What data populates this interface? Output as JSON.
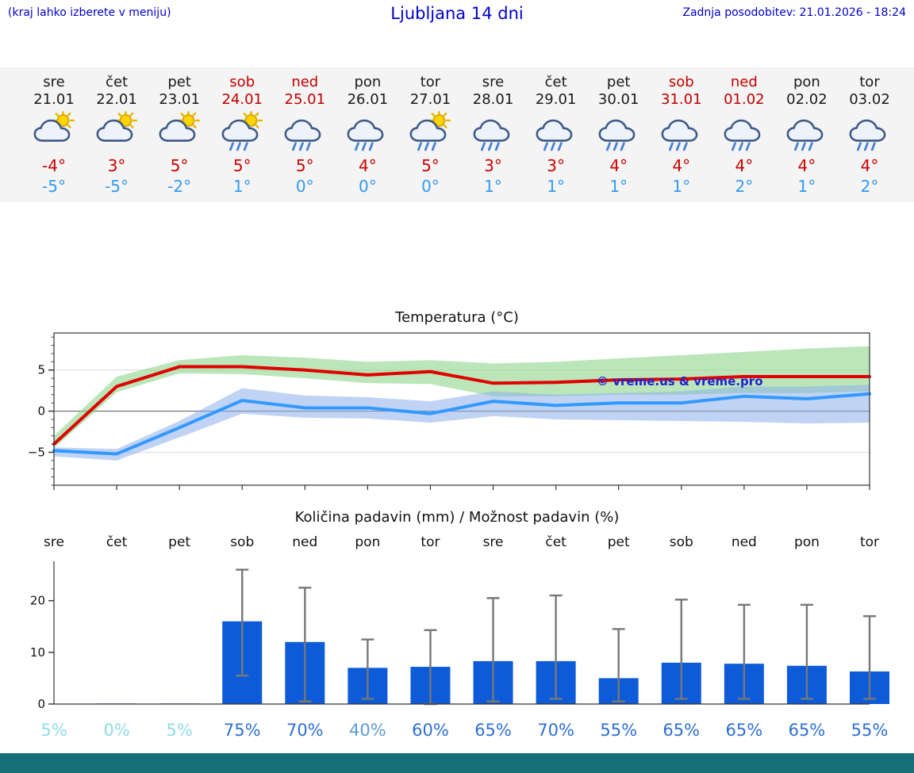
{
  "header": {
    "menu_note": "(kraj lahko izberete v meniju)",
    "title": "Ljubljana 14 dni",
    "last_update": "Zadnja posodobitev: 21.01.2026 - 18:24"
  },
  "colors": {
    "header_blue": "#0000cc",
    "weekend_red": "#c00000",
    "tmax_red": "#cc0000",
    "tmin_blue": "#3399ee",
    "bar_blue": "#0d5bd8",
    "whisker_gray": "#777777",
    "prob_high": "#2d6fd2",
    "prob_mid": "#5b9bd5",
    "prob_low": "#8fdce8",
    "footer_teal": "#156e78"
  },
  "watermark": "© vreme.us & vreme.pro",
  "forecast_days": [
    {
      "name": "sre",
      "date": "21.01",
      "weekend": false,
      "icon": "sun-cloud",
      "tmax": "-4°",
      "tmin": "-5°"
    },
    {
      "name": "čet",
      "date": "22.01",
      "weekend": false,
      "icon": "sun-cloud",
      "tmax": "3°",
      "tmin": "-5°"
    },
    {
      "name": "pet",
      "date": "23.01",
      "weekend": false,
      "icon": "sun-cloud",
      "tmax": "5°",
      "tmin": "-2°"
    },
    {
      "name": "sob",
      "date": "24.01",
      "weekend": true,
      "icon": "sun-rain",
      "tmax": "5°",
      "tmin": "1°"
    },
    {
      "name": "ned",
      "date": "25.01",
      "weekend": true,
      "icon": "rain",
      "tmax": "5°",
      "tmin": "0°"
    },
    {
      "name": "pon",
      "date": "26.01",
      "weekend": false,
      "icon": "rain",
      "tmax": "4°",
      "tmin": "0°"
    },
    {
      "name": "tor",
      "date": "27.01",
      "weekend": false,
      "icon": "sun-rain",
      "tmax": "5°",
      "tmin": "0°"
    },
    {
      "name": "sre",
      "date": "28.01",
      "weekend": false,
      "icon": "rain",
      "tmax": "3°",
      "tmin": "1°"
    },
    {
      "name": "čet",
      "date": "29.01",
      "weekend": false,
      "icon": "rain",
      "tmax": "3°",
      "tmin": "1°"
    },
    {
      "name": "pet",
      "date": "30.01",
      "weekend": false,
      "icon": "rain",
      "tmax": "4°",
      "tmin": "1°"
    },
    {
      "name": "sob",
      "date": "31.01",
      "weekend": true,
      "icon": "rain",
      "tmax": "4°",
      "tmin": "1°"
    },
    {
      "name": "ned",
      "date": "01.02",
      "weekend": true,
      "icon": "rain",
      "tmax": "4°",
      "tmin": "2°"
    },
    {
      "name": "pon",
      "date": "02.02",
      "weekend": false,
      "icon": "rain",
      "tmax": "4°",
      "tmin": "1°"
    },
    {
      "name": "tor",
      "date": "03.02",
      "weekend": false,
      "icon": "rain",
      "tmax": "4°",
      "tmin": "2°"
    }
  ],
  "chart_data": [
    {
      "type": "line",
      "title": "Temperatura (°C)",
      "categories": [
        "sre 21.01",
        "čet 22.01",
        "pet 23.01",
        "sob 24.01",
        "ned 25.01",
        "pon 26.01",
        "tor 27.01",
        "sre 28.01",
        "čet 29.01",
        "pet 30.01",
        "sob 31.01",
        "ned 01.02",
        "pon 02.02",
        "tor 03.02"
      ],
      "series": [
        {
          "name": "temp-max",
          "color": "#e10000",
          "values": [
            -4,
            3,
            5.4,
            5.4,
            5,
            4.4,
            4.8,
            3.4,
            3.5,
            3.8,
            3.9,
            4.2,
            4.2,
            4.2
          ]
        },
        {
          "name": "temp-min",
          "color": "#3399ff",
          "values": [
            -4.8,
            -5.2,
            -2,
            1.3,
            0.4,
            0.4,
            -0.3,
            1.2,
            0.7,
            1,
            1,
            1.8,
            1.5,
            2.1
          ]
        }
      ],
      "bands": [
        {
          "name": "temp-max-range",
          "color": "rgba(130,210,130,0.55)",
          "upper": [
            -3,
            4.2,
            6.2,
            6.8,
            6.5,
            6,
            6.2,
            5.8,
            6,
            6.4,
            6.8,
            7.2,
            7.6,
            7.9
          ],
          "lower": [
            -4.5,
            2.3,
            4.6,
            4.5,
            4,
            3.4,
            3.3,
            1.8,
            1.8,
            2,
            2,
            2.2,
            2.2,
            2.4
          ]
        },
        {
          "name": "temp-min-range",
          "color": "rgba(140,175,235,0.55)",
          "upper": [
            -4.4,
            -4.6,
            -1.2,
            2.8,
            1.9,
            1.7,
            1.2,
            2.4,
            2,
            2.2,
            2.4,
            3,
            3,
            3.2
          ],
          "lower": [
            -5.5,
            -6,
            -3.2,
            -0.3,
            -0.8,
            -0.9,
            -1.4,
            -0.6,
            -1,
            -1.1,
            -1.2,
            -1.3,
            -1.5,
            -1.4
          ]
        }
      ],
      "ylim": [
        -9,
        9.5
      ],
      "yticks": [
        -5,
        0,
        5
      ],
      "grid": true,
      "legend": "none"
    },
    {
      "type": "bar",
      "title": "Količina padavin (mm) / Možnost padavin (%)",
      "categories": [
        "sre",
        "čet",
        "pet",
        "sob",
        "ned",
        "pon",
        "tor",
        "sre",
        "čet",
        "pet",
        "sob",
        "ned",
        "pon",
        "tor"
      ],
      "values": [
        0,
        0.1,
        0.1,
        16,
        12,
        7,
        7.2,
        8.3,
        8.3,
        5,
        8,
        7.8,
        7.4,
        6.3
      ],
      "whiskers": [
        null,
        null,
        null,
        [
          5.5,
          26
        ],
        [
          0.5,
          22.5
        ],
        [
          1,
          12.5
        ],
        [
          0,
          14.3
        ],
        [
          0.5,
          20.5
        ],
        [
          1,
          21
        ],
        [
          0.5,
          14.5
        ],
        [
          1,
          20.2
        ],
        [
          1,
          19.2
        ],
        [
          1,
          19.2
        ],
        [
          1,
          17
        ]
      ],
      "probabilities": [
        {
          "label": "5%",
          "level": "low"
        },
        {
          "label": "0%",
          "level": "low"
        },
        {
          "label": "5%",
          "level": "low"
        },
        {
          "label": "75%",
          "level": "high"
        },
        {
          "label": "70%",
          "level": "high"
        },
        {
          "label": "40%",
          "level": "mid"
        },
        {
          "label": "60%",
          "level": "high"
        },
        {
          "label": "65%",
          "level": "high"
        },
        {
          "label": "70%",
          "level": "high"
        },
        {
          "label": "55%",
          "level": "high"
        },
        {
          "label": "65%",
          "level": "high"
        },
        {
          "label": "65%",
          "level": "high"
        },
        {
          "label": "65%",
          "level": "high"
        },
        {
          "label": "55%",
          "level": "high"
        }
      ],
      "ylim": [
        0,
        27
      ],
      "yticks": [
        0,
        10,
        20
      ],
      "grid": false,
      "legend": "none"
    }
  ]
}
